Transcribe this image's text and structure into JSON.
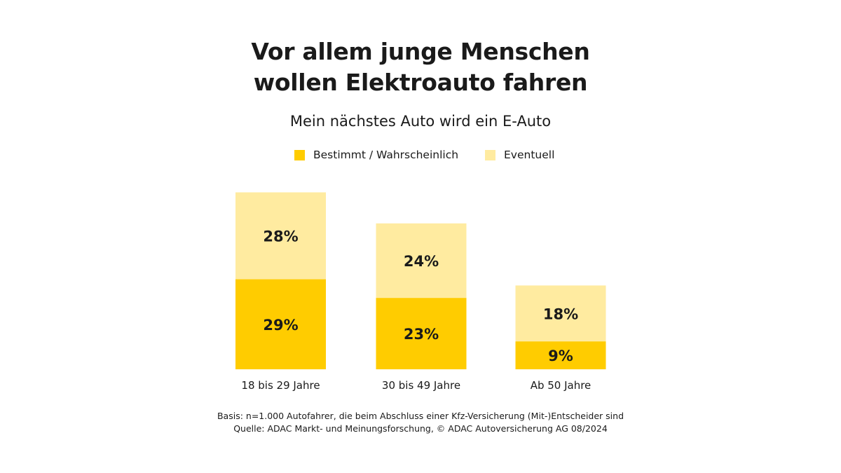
{
  "header": {
    "title_line1": "Vor allem junge Menschen",
    "title_line2": "wollen Elektroauto fahren",
    "subtitle": "Mein nächstes Auto wird ein E-Auto"
  },
  "footer": {
    "line1": "Basis: n=1.000 Autofahrer, die beim Abschluss einer Kfz-Versicherung (Mit-)Entscheider sind",
    "line2": "Quelle: ADAC Markt- und Meinungsforschung, © ADAC Autoversicherung AG 08/2024"
  },
  "chart_data": {
    "type": "bar",
    "stacked": true,
    "title": "Vor allem junge Menschen wollen Elektroauto fahren",
    "subtitle": "Mein nächstes Auto wird ein E-Auto",
    "categories": [
      "18 bis 29 Jahre",
      "30 bis 49 Jahre",
      "Ab 50 Jahre"
    ],
    "series": [
      {
        "name": "Bestimmt / Wahrscheinlich",
        "color": "#ffcc00",
        "values": [
          29,
          23,
          9
        ],
        "labels": [
          "29%",
          "23%",
          "9%"
        ]
      },
      {
        "name": "Eventuell",
        "color": "#ffeba0",
        "values": [
          28,
          24,
          18
        ],
        "labels": [
          "28%",
          "24%",
          "18%"
        ]
      }
    ],
    "legend": {
      "placement": "top-center"
    },
    "xlabel": "",
    "ylabel": "",
    "ylim": [
      0,
      60
    ],
    "grid": false,
    "axes_visible": false
  }
}
